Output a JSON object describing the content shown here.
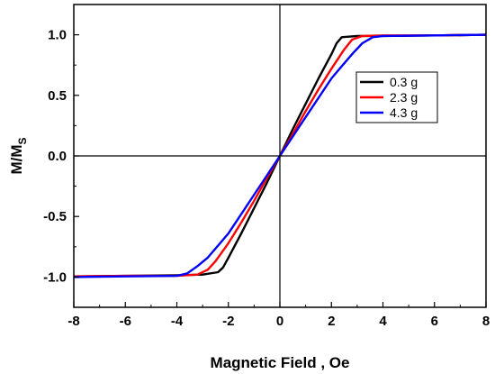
{
  "chart_data": {
    "type": "line",
    "xlabel": "Magnetic Field , Oe",
    "ylabel_main": "M/M",
    "ylabel_sub": "S",
    "xlim": [
      -8,
      8
    ],
    "ylim": [
      -1.25,
      1.25
    ],
    "x_ticks": [
      -8,
      -6,
      -4,
      -2,
      0,
      2,
      4,
      6,
      8
    ],
    "x_tick_labels": [
      "-8",
      "-6",
      "-4",
      "-2",
      "0",
      "2",
      "4",
      "6",
      "8"
    ],
    "y_ticks": [
      -1.0,
      -0.5,
      0.0,
      0.5,
      1.0
    ],
    "y_tick_labels": [
      "-1.0",
      "-0.5",
      "0.0",
      "0.5",
      "1.0"
    ],
    "grid": false,
    "reference_lines": [
      "x=0",
      "y=0"
    ],
    "legend_position": "top-right",
    "series": [
      {
        "name": "0.3 g",
        "color": "#000000",
        "x": [
          -8,
          -6,
          -4,
          -3,
          -2.4,
          -2.2,
          -2.0,
          -1.5,
          -1.0,
          -0.5,
          0,
          0.5,
          1.0,
          1.5,
          2.0,
          2.2,
          2.4,
          3,
          4,
          6,
          8
        ],
        "y": [
          -0.995,
          -0.99,
          -0.985,
          -0.98,
          -0.96,
          -0.92,
          -0.84,
          -0.64,
          -0.43,
          -0.22,
          0.0,
          0.22,
          0.43,
          0.64,
          0.84,
          0.93,
          0.98,
          0.99,
          0.99,
          0.995,
          1.0
        ]
      },
      {
        "name": "2.3 g",
        "color": "#ff0000",
        "x": [
          -8,
          -6,
          -4,
          -3.2,
          -2.8,
          -2.5,
          -2.0,
          -1.5,
          -1.0,
          -0.5,
          0,
          0.5,
          1.0,
          1.5,
          2.0,
          2.5,
          2.8,
          3.2,
          4,
          6,
          8
        ],
        "y": [
          -0.995,
          -0.99,
          -0.99,
          -0.98,
          -0.94,
          -0.87,
          -0.72,
          -0.55,
          -0.37,
          -0.18,
          0.0,
          0.18,
          0.37,
          0.55,
          0.72,
          0.88,
          0.96,
          0.99,
          0.995,
          0.995,
          1.0
        ]
      },
      {
        "name": "4.3 g",
        "color": "#0000ff",
        "x": [
          -8,
          -6,
          -4,
          -3.6,
          -3.2,
          -2.8,
          -2.4,
          -2.0,
          -1.0,
          0,
          1.0,
          2.0,
          2.4,
          2.8,
          3.2,
          3.6,
          4,
          6,
          8
        ],
        "y": [
          -1.0,
          -0.995,
          -0.99,
          -0.97,
          -0.91,
          -0.84,
          -0.74,
          -0.64,
          -0.32,
          0.0,
          0.32,
          0.64,
          0.74,
          0.84,
          0.93,
          0.98,
          0.99,
          0.995,
          1.0
        ]
      }
    ]
  }
}
